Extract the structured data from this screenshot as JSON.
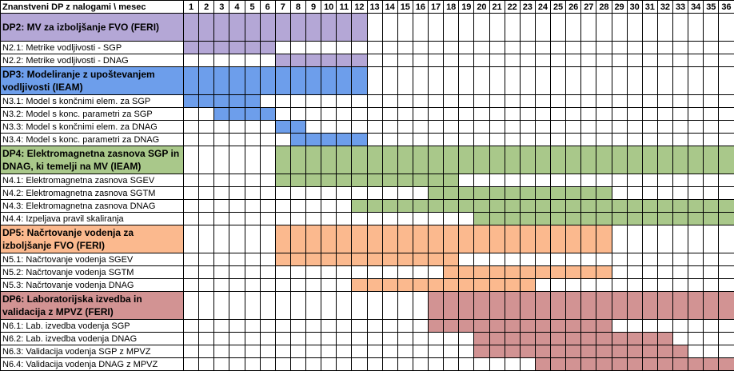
{
  "header": {
    "label": "Znanstveni DP z nalogami  \\  mesec",
    "months": [
      "1",
      "2",
      "3",
      "4",
      "5",
      "6",
      "7",
      "8",
      "9",
      "10",
      "11",
      "12",
      "13",
      "14",
      "15",
      "16",
      "17",
      "18",
      "19",
      "20",
      "21",
      "22",
      "23",
      "24",
      "25",
      "26",
      "27",
      "28",
      "29",
      "30",
      "31",
      "32",
      "33",
      "34",
      "35",
      "36"
    ]
  },
  "colors": {
    "DP2": "#b4a7d6",
    "DP3": "#6d9eeb",
    "DP4": "#a9c88a",
    "DP5": "#fbb98e",
    "DP6": "#d29393",
    "empty": "#ffffff"
  },
  "rows": [
    {
      "label": "DP2: MV za izboljšanje FVO (FERI)",
      "type": "wp",
      "color": "DP2",
      "height": 34,
      "start": 1,
      "end": 12
    },
    {
      "label": "N2.1: Metrike vodljivosti - SGP",
      "type": "task",
      "color": "DP2",
      "start": 1,
      "end": 6
    },
    {
      "label": "N2.2: Metrike vodljivosti  - DNAG",
      "type": "task",
      "color": "DP2",
      "start": 7,
      "end": 12
    },
    {
      "label": "DP3: Modeliranje z upoštevanjem vodljivosti (IEAM)",
      "type": "wp",
      "color": "DP3",
      "height": 34,
      "start": 1,
      "end": 12
    },
    {
      "label": "N3.1: Model s končnimi elem. za SGP",
      "type": "task",
      "color": "DP3",
      "start": 1,
      "end": 5
    },
    {
      "label": "N3.2: Model s konc. parametri za SGP",
      "type": "task",
      "color": "DP3",
      "start": 3,
      "end": 6
    },
    {
      "label": "N3.3: Model s končnimi elem. za DNAG",
      "type": "task",
      "color": "DP3",
      "start": 7,
      "end": 8
    },
    {
      "label": "N3.4: Model s konc. parametri za DNAG",
      "type": "task",
      "color": "DP3",
      "start": 8,
      "end": 12
    },
    {
      "label": "DP4: Elektromagnetna zasnova SGP in DNAG, ki temelji na MV (IEAM)",
      "type": "wp",
      "color": "DP4",
      "height": 34,
      "start": 7,
      "end": 36
    },
    {
      "label": "N4.1: Elektromagnetna zasnova SGEV",
      "type": "task",
      "color": "DP4",
      "start": 7,
      "end": 18
    },
    {
      "label": "N4.2: Elektromagnetna zasnova SGTM",
      "type": "task",
      "color": "DP4",
      "start": 17,
      "end": 28
    },
    {
      "label": "N4.3: Elektromagnetna zasnova DNAG",
      "type": "task",
      "color": "DP4",
      "start": 12,
      "end": 36
    },
    {
      "label": "N4.4: Izpeljava pravil skaliranja",
      "type": "task",
      "color": "DP4",
      "start": 20,
      "end": 36
    },
    {
      "label": "DP5: Načrtovanje vodenja za izboljšanje FVO (FERI)",
      "type": "wp",
      "color": "DP5",
      "height": 34,
      "start": 7,
      "end": 28
    },
    {
      "label": "N5.1: Načrtovanje vodenja SGEV",
      "type": "task",
      "color": "DP5",
      "start": 7,
      "end": 18
    },
    {
      "label": "N5.2: Načrtovanje vodenja SGTM",
      "type": "task",
      "color": "DP5",
      "start": 18,
      "end": 28
    },
    {
      "label": "N5.3: Načrtovanje vodenja DNAG",
      "type": "task",
      "color": "DP5",
      "start": 12,
      "end": 23
    },
    {
      "label": "DP6: Laboratorijska izvedba in validacija z MPVZ (FERI)",
      "type": "wp",
      "color": "DP6",
      "height": 34,
      "start": 17,
      "end": 36
    },
    {
      "label": "N6.1: Lab. izvedba vodenja SGP",
      "type": "task",
      "color": "DP6",
      "start": 17,
      "end": 28
    },
    {
      "label": "N6.2: Lab. izvedba vodenja DNAG",
      "type": "task",
      "color": "DP6",
      "start": 20,
      "end": 32
    },
    {
      "label": "N6.3: Validacija vodenja SGP z MPVZ",
      "type": "task",
      "color": "DP6",
      "start": 20,
      "end": 33
    },
    {
      "label": "N6.4: Validacija vodenja DNAG z MPVZ",
      "type": "task",
      "color": "DP6",
      "start": 24,
      "end": 36
    }
  ]
}
